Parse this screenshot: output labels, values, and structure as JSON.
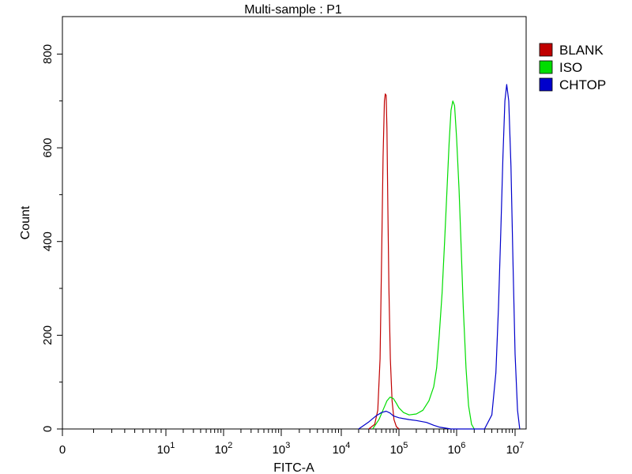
{
  "chart_data": {
    "type": "line",
    "title": "Multi-sample : P1",
    "xlabel": "FITC-A",
    "ylabel": "Count",
    "xscale": "biexponential-log",
    "xlim": [
      0,
      15000000
    ],
    "ylim": [
      0,
      880
    ],
    "x_tick_labels": [
      {
        "value": 0,
        "base": "0",
        "exp": ""
      },
      {
        "value": 10,
        "base": "10",
        "exp": "1"
      },
      {
        "value": 100,
        "base": "10",
        "exp": "2"
      },
      {
        "value": 1000,
        "base": "10",
        "exp": "3"
      },
      {
        "value": 10000,
        "base": "10",
        "exp": "4"
      },
      {
        "value": 100000,
        "base": "10",
        "exp": "5"
      },
      {
        "value": 1000000,
        "base": "10",
        "exp": "6"
      },
      {
        "value": 10000000,
        "base": "10",
        "exp": "7"
      }
    ],
    "y_ticks": [
      0,
      200,
      400,
      600,
      800
    ],
    "y_tick_labels": [
      "0",
      "200",
      "400",
      "600",
      "800"
    ],
    "grid": false,
    "legend_position": "top-right outside",
    "series": [
      {
        "name": "BLANK",
        "color": "#c00000",
        "x": [
          30000,
          38000,
          43000,
          47000,
          50000,
          53000,
          56000,
          58000,
          60000,
          62000,
          64000,
          67000,
          71000,
          76000,
          82000,
          90000,
          100000
        ],
        "y": [
          0,
          10,
          40,
          150,
          360,
          580,
          700,
          715,
          712,
          640,
          480,
          300,
          150,
          60,
          20,
          5,
          0
        ]
      },
      {
        "name": "ISO",
        "color": "#00dd00",
        "x": [
          35000,
          45000,
          55000,
          62000,
          70000,
          80000,
          90000,
          100000,
          120000,
          150000,
          200000,
          260000,
          330000,
          400000,
          450000,
          500000,
          560000,
          620000,
          680000,
          740000,
          800000,
          860000,
          920000,
          1000000,
          1100000,
          1200000,
          1300000,
          1450000,
          1600000,
          1800000,
          2000000
        ],
        "y": [
          0,
          20,
          45,
          60,
          68,
          65,
          55,
          45,
          35,
          30,
          32,
          40,
          60,
          90,
          130,
          200,
          290,
          400,
          510,
          610,
          680,
          700,
          690,
          620,
          510,
          380,
          260,
          130,
          50,
          10,
          0
        ]
      },
      {
        "name": "CHTOP",
        "color": "#0000cc",
        "x": [
          20000,
          30000,
          40000,
          50000,
          60000,
          70000,
          80000,
          100000,
          150000,
          200000,
          300000,
          400000,
          500000,
          800000,
          1500000,
          3000000,
          4000000,
          4700000,
          5200000,
          5700000,
          6200000,
          6700000,
          7200000,
          7800000,
          8500000,
          9200000,
          10000000,
          11000000,
          12000000
        ],
        "y": [
          0,
          15,
          28,
          35,
          38,
          34,
          28,
          24,
          20,
          18,
          14,
          8,
          4,
          0,
          0,
          0,
          30,
          120,
          260,
          420,
          580,
          700,
          735,
          700,
          560,
          360,
          160,
          40,
          0
        ]
      }
    ]
  }
}
